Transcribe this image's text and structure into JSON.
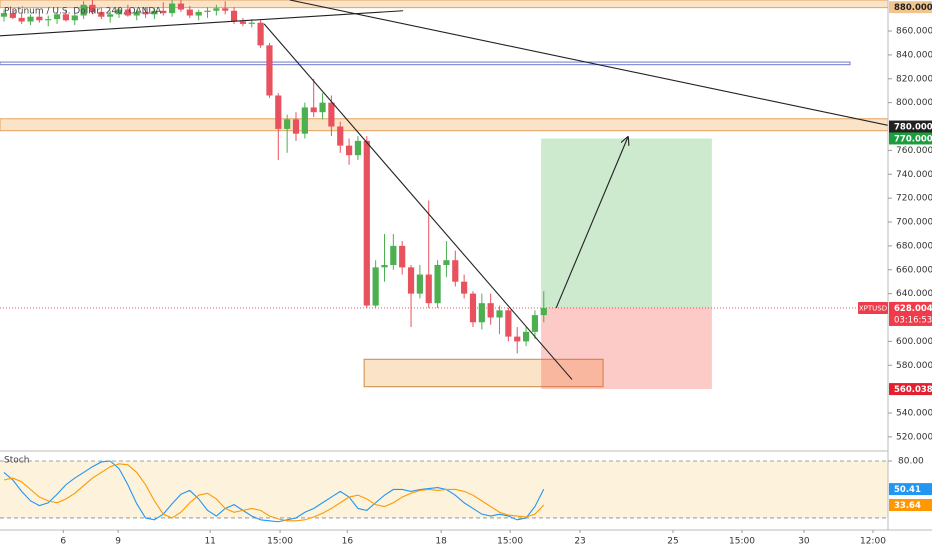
{
  "chart_data": {
    "type": "candlestick",
    "title": "Platinum / U.S. Dollar, 240, OANDA",
    "colors": {
      "up": "#4caf50",
      "down": "#e8515e"
    },
    "xlim": [
      -0.45,
      99.9
    ],
    "xticks": [
      {
        "value": 6.7,
        "label": "6"
      },
      {
        "value": 12.9,
        "label": "9"
      },
      {
        "value": 23.3,
        "label": "11"
      },
      {
        "value": 31.2,
        "label": "15:00"
      },
      {
        "value": 38.8,
        "label": "16"
      },
      {
        "value": 49.4,
        "label": "18"
      },
      {
        "value": 57.2,
        "label": "15:00"
      },
      {
        "value": 65.1,
        "label": "23"
      },
      {
        "value": 75.6,
        "label": "25"
      },
      {
        "value": 83.4,
        "label": "15:00"
      },
      {
        "value": 90.4,
        "label": "30"
      },
      {
        "value": 98.2,
        "label": "12:00"
      }
    ],
    "ylim": [
      509,
      886
    ],
    "yticks": [
      {
        "value": 860,
        "label": "860.000"
      },
      {
        "value": 840,
        "label": "840.000"
      },
      {
        "value": 820,
        "label": "820.000"
      },
      {
        "value": 800,
        "label": "800.000"
      },
      {
        "value": 760,
        "label": "760.000"
      },
      {
        "value": 740,
        "label": "740.000"
      },
      {
        "value": 720,
        "label": "720.000"
      },
      {
        "value": 700,
        "label": "700.000"
      },
      {
        "value": 680,
        "label": "680.000"
      },
      {
        "value": 660,
        "label": "660.000"
      },
      {
        "value": 640,
        "label": "640.000"
      },
      {
        "value": 600,
        "label": "600.000"
      },
      {
        "value": 580,
        "label": "580.000"
      },
      {
        "value": 540,
        "label": "540.000"
      },
      {
        "value": 520,
        "label": "520.000"
      }
    ],
    "grid": false,
    "candles": {
      "open": [
        872,
        875,
        871,
        868,
        872,
        869,
        870,
        874,
        869,
        873,
        882,
        876,
        872,
        874,
        878,
        873,
        876,
        874,
        877,
        875,
        883,
        878,
        873,
        876,
        877,
        879,
        877,
        868,
        866,
        867,
        848,
        806,
        778,
        786,
        774,
        796,
        792,
        800,
        780,
        764,
        756,
        768,
        630,
        662,
        664,
        680,
        662,
        640,
        656,
        632,
        664,
        668,
        650,
        640,
        616,
        632,
        620,
        626,
        604,
        600,
        608,
        622
      ],
      "high": [
        878,
        879,
        876,
        874,
        876,
        873,
        876,
        878,
        875,
        885,
        886,
        880,
        877,
        880,
        882,
        878,
        880,
        879,
        884,
        886,
        886,
        881,
        878,
        880,
        882,
        885,
        880,
        871,
        870,
        869,
        850,
        808,
        790,
        792,
        800,
        820,
        808,
        806,
        784,
        770,
        772,
        772,
        668,
        690,
        690,
        684,
        664,
        664,
        718,
        668,
        684,
        676,
        656,
        642,
        640,
        640,
        630,
        628,
        612,
        612,
        626,
        642
      ],
      "low": [
        868,
        870,
        866,
        865,
        867,
        864,
        866,
        868,
        865,
        870,
        874,
        870,
        867,
        871,
        872,
        869,
        871,
        870,
        873,
        872,
        876,
        871,
        869,
        871,
        873,
        874,
        866,
        864,
        863,
        846,
        804,
        752,
        758,
        768,
        770,
        788,
        786,
        772,
        758,
        748,
        752,
        628,
        628,
        650,
        660,
        656,
        612,
        636,
        628,
        628,
        654,
        646,
        636,
        612,
        610,
        614,
        606,
        600,
        590,
        596,
        602,
        616
      ],
      "close": [
        875,
        871,
        868,
        872,
        869,
        870,
        874,
        869,
        873,
        882,
        876,
        872,
        874,
        878,
        873,
        876,
        874,
        877,
        875,
        883,
        878,
        873,
        876,
        877,
        879,
        877,
        868,
        866,
        867,
        848,
        806,
        778,
        786,
        774,
        796,
        792,
        800,
        780,
        764,
        756,
        768,
        630,
        662,
        664,
        680,
        662,
        640,
        656,
        632,
        664,
        668,
        650,
        640,
        616,
        632,
        620,
        626,
        604,
        600,
        608,
        622,
        628
      ]
    },
    "price_tags": [
      {
        "value": 880,
        "label": "880.000",
        "bg": "#f2c48e",
        "fg": "#222222"
      },
      {
        "value": 780,
        "label": "780.000",
        "bg": "#222222",
        "fg": "#ffffff"
      },
      {
        "value": 770,
        "label": "770.000",
        "bg": "#1b9e3e",
        "fg": "#ffffff"
      },
      {
        "value": 560.038,
        "label": "560.038",
        "bg": "#e3202f",
        "fg": "#ffffff"
      }
    ],
    "last_price": {
      "symbol": "XPTUSD",
      "value": 628.004,
      "label": "628.004",
      "countdown": "03:16:53",
      "color": "#ef3b4a"
    },
    "drawings": {
      "zones": [
        {
          "from": 879.6,
          "to": 886,
          "x": [
            -0.45,
            99.9
          ],
          "fill": "#fbe3c8",
          "stroke": "#e3a25f"
        },
        {
          "from": 831.8,
          "to": 834,
          "x": [
            -0.45,
            95.6
          ],
          "fill": "none",
          "stroke": "#6f7ac8"
        },
        {
          "from": 776.5,
          "to": 786.5,
          "x": [
            -0.45,
            99.9
          ],
          "fill": "#fbe3c8",
          "stroke": "#e3a25f"
        },
        {
          "from": 562,
          "to": 585,
          "x": [
            40.7,
            67.7
          ],
          "fill": "#fbe3c8",
          "stroke": "#c98c4a"
        }
      ],
      "trendlines": [
        {
          "x": [
            -0.45,
            45.1
          ],
          "y": [
            856,
            877
          ],
          "arrow": false
        },
        {
          "x": [
            32.3,
            99.9
          ],
          "y": [
            886,
            781
          ],
          "arrow": false
        },
        {
          "x": [
            29.4,
            64.2
          ],
          "y": [
            866,
            568
          ],
          "arrow": false
        },
        {
          "x": [
            62.4,
            70.5
          ],
          "y": [
            628,
            771
          ],
          "arrow": true
        }
      ],
      "position": {
        "entry": 628,
        "target": 770,
        "stop": 560.038,
        "x": [
          60.7,
          80
        ]
      }
    },
    "stoch": {
      "label": "Stoch",
      "ylim": [
        7.3,
        89.5
      ],
      "yticks": [
        {
          "value": 80,
          "label": "80.00"
        }
      ],
      "band": [
        20,
        80
      ],
      "series": [
        {
          "color": "#2196f3",
          "values": [
            68,
            60,
            48,
            38,
            33,
            36,
            45,
            55,
            62,
            68,
            74,
            79,
            80,
            72,
            55,
            35,
            20,
            18,
            24,
            35,
            45,
            49,
            40,
            28,
            22,
            30,
            34,
            28,
            22,
            18,
            17,
            16,
            18,
            20,
            26,
            30,
            36,
            42,
            48,
            42,
            30,
            28,
            36,
            44,
            50,
            50,
            48,
            50,
            51,
            52,
            50,
            44,
            36,
            30,
            24,
            22,
            24,
            22,
            18,
            20,
            32,
            50.41
          ]
        },
        {
          "color": "#ff9800",
          "values": [
            60,
            62,
            58,
            50,
            42,
            38,
            36,
            40,
            46,
            54,
            62,
            68,
            74,
            77,
            76,
            68,
            55,
            38,
            24,
            20,
            26,
            36,
            44,
            46,
            40,
            30,
            26,
            28,
            30,
            28,
            22,
            19,
            17,
            17,
            18,
            21,
            25,
            30,
            36,
            42,
            44,
            40,
            34,
            32,
            36,
            42,
            46,
            49,
            50,
            49,
            50,
            50,
            48,
            44,
            38,
            32,
            26,
            23,
            22,
            21,
            24,
            33.64
          ]
        }
      ],
      "tags": [
        {
          "value": 50.41,
          "label": "50.41",
          "bg": "#2196f3"
        },
        {
          "value": 33.64,
          "label": "33.64",
          "bg": "#ff9800"
        }
      ]
    }
  }
}
